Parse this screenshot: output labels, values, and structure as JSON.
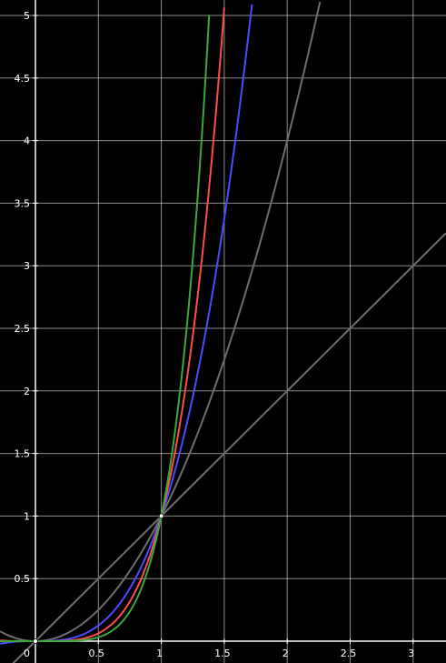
{
  "chart_data": {
    "type": "line",
    "title": "",
    "xlabel": "",
    "ylabel": "",
    "xlim": [
      -0.28,
      3.26
    ],
    "ylim": [
      -0.25,
      5.1
    ],
    "grid": true,
    "background": "#000000",
    "grid_color": "#ffffff",
    "axis_color": "#ffffff",
    "origin_label": "0",
    "x_ticks": [
      {
        "value": 0.5,
        "label": "0.5"
      },
      {
        "value": 1,
        "label": "1"
      },
      {
        "value": 1.5,
        "label": "1.5"
      },
      {
        "value": 2,
        "label": "2"
      },
      {
        "value": 2.5,
        "label": "2.5"
      },
      {
        "value": 3,
        "label": "3"
      }
    ],
    "y_ticks": [
      {
        "value": 0.5,
        "label": "0.5"
      },
      {
        "value": 1,
        "label": "1"
      },
      {
        "value": 1.5,
        "label": "1.5"
      },
      {
        "value": 2,
        "label": "2"
      },
      {
        "value": 2.5,
        "label": "2.5"
      },
      {
        "value": 3,
        "label": "3"
      },
      {
        "value": 3.5,
        "label": "3.5"
      },
      {
        "value": 4,
        "label": "4"
      },
      {
        "value": 4.5,
        "label": "4.5"
      },
      {
        "value": 5,
        "label": "5"
      }
    ],
    "series": [
      {
        "color": "#6e6e6e",
        "exponent": 1,
        "x": [
          -0.28,
          0,
          1,
          2,
          3,
          3.26
        ],
        "y": [
          -0.28,
          0,
          1,
          2,
          3,
          3.26
        ]
      },
      {
        "color": "#6e6e6e",
        "exponent": 2,
        "x": [
          -0.28,
          0,
          1,
          2,
          2.26
        ],
        "y": [
          0.078,
          0,
          1,
          4,
          5.1
        ]
      },
      {
        "color": "#4c4cff",
        "exponent": 3,
        "x": [
          -0.28,
          0,
          0.5,
          1,
          1.5,
          1.72
        ],
        "y": [
          -0.022,
          0,
          0.125,
          1,
          3.375,
          5.09
        ]
      },
      {
        "color": "#ff4c4c",
        "exponent": 4,
        "x": [
          -0.28,
          0,
          0.5,
          1,
          1.4,
          1.5
        ],
        "y": [
          0.006,
          0,
          0.0625,
          1,
          3.84,
          5.06
        ]
      },
      {
        "color": "#3aa83a",
        "exponent": 5,
        "x": [
          -0.28,
          0,
          0.5,
          1,
          1.3,
          1.38
        ],
        "y": [
          -0.002,
          0,
          0.031,
          1,
          3.71,
          5.0
        ]
      }
    ],
    "points": [
      {
        "x": 0,
        "y": 0
      },
      {
        "x": 1,
        "y": 1
      }
    ]
  }
}
